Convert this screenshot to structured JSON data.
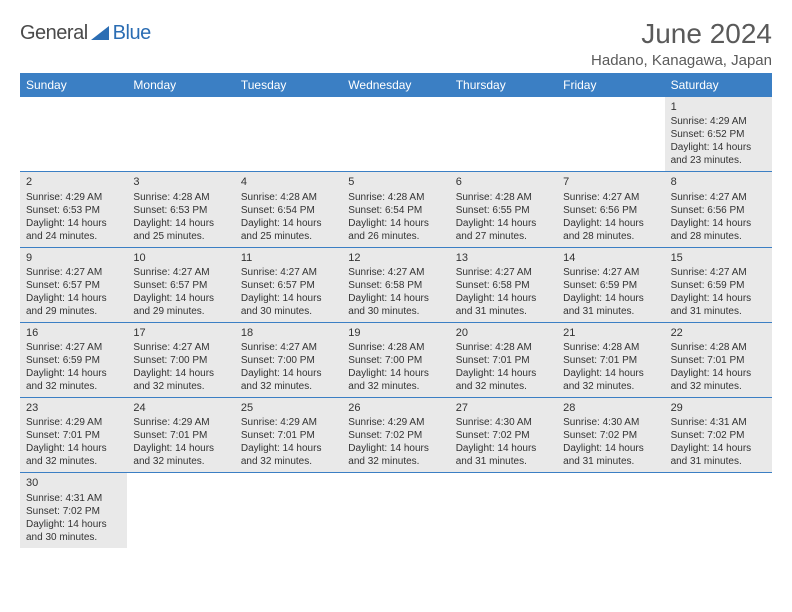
{
  "logo": {
    "part1": "General",
    "part2": "Blue"
  },
  "title": "June 2024",
  "location": "Hadano, Kanagawa, Japan",
  "colors": {
    "header_bg": "#3b7fc4",
    "header_fg": "#ffffff",
    "shaded_bg": "#e9e9e9",
    "border": "#3b7fc4",
    "text": "#333333",
    "title_text": "#5a5a5a",
    "logo_blue": "#2b6db3"
  },
  "typography": {
    "title_size_pt": 21,
    "location_size_pt": 11,
    "header_size_pt": 9,
    "cell_size_pt": 7.5
  },
  "layout": {
    "columns": 7,
    "rows": 6
  },
  "day_names": [
    "Sunday",
    "Monday",
    "Tuesday",
    "Wednesday",
    "Thursday",
    "Friday",
    "Saturday"
  ],
  "days": [
    {
      "n": 1,
      "sunrise": "4:29 AM",
      "sunset": "6:52 PM",
      "daylight": "14 hours and 23 minutes."
    },
    {
      "n": 2,
      "sunrise": "4:29 AM",
      "sunset": "6:53 PM",
      "daylight": "14 hours and 24 minutes."
    },
    {
      "n": 3,
      "sunrise": "4:28 AM",
      "sunset": "6:53 PM",
      "daylight": "14 hours and 25 minutes."
    },
    {
      "n": 4,
      "sunrise": "4:28 AM",
      "sunset": "6:54 PM",
      "daylight": "14 hours and 25 minutes."
    },
    {
      "n": 5,
      "sunrise": "4:28 AM",
      "sunset": "6:54 PM",
      "daylight": "14 hours and 26 minutes."
    },
    {
      "n": 6,
      "sunrise": "4:28 AM",
      "sunset": "6:55 PM",
      "daylight": "14 hours and 27 minutes."
    },
    {
      "n": 7,
      "sunrise": "4:27 AM",
      "sunset": "6:56 PM",
      "daylight": "14 hours and 28 minutes."
    },
    {
      "n": 8,
      "sunrise": "4:27 AM",
      "sunset": "6:56 PM",
      "daylight": "14 hours and 28 minutes."
    },
    {
      "n": 9,
      "sunrise": "4:27 AM",
      "sunset": "6:57 PM",
      "daylight": "14 hours and 29 minutes."
    },
    {
      "n": 10,
      "sunrise": "4:27 AM",
      "sunset": "6:57 PM",
      "daylight": "14 hours and 29 minutes."
    },
    {
      "n": 11,
      "sunrise": "4:27 AM",
      "sunset": "6:57 PM",
      "daylight": "14 hours and 30 minutes."
    },
    {
      "n": 12,
      "sunrise": "4:27 AM",
      "sunset": "6:58 PM",
      "daylight": "14 hours and 30 minutes."
    },
    {
      "n": 13,
      "sunrise": "4:27 AM",
      "sunset": "6:58 PM",
      "daylight": "14 hours and 31 minutes."
    },
    {
      "n": 14,
      "sunrise": "4:27 AM",
      "sunset": "6:59 PM",
      "daylight": "14 hours and 31 minutes."
    },
    {
      "n": 15,
      "sunrise": "4:27 AM",
      "sunset": "6:59 PM",
      "daylight": "14 hours and 31 minutes."
    },
    {
      "n": 16,
      "sunrise": "4:27 AM",
      "sunset": "6:59 PM",
      "daylight": "14 hours and 32 minutes."
    },
    {
      "n": 17,
      "sunrise": "4:27 AM",
      "sunset": "7:00 PM",
      "daylight": "14 hours and 32 minutes."
    },
    {
      "n": 18,
      "sunrise": "4:27 AM",
      "sunset": "7:00 PM",
      "daylight": "14 hours and 32 minutes."
    },
    {
      "n": 19,
      "sunrise": "4:28 AM",
      "sunset": "7:00 PM",
      "daylight": "14 hours and 32 minutes."
    },
    {
      "n": 20,
      "sunrise": "4:28 AM",
      "sunset": "7:01 PM",
      "daylight": "14 hours and 32 minutes."
    },
    {
      "n": 21,
      "sunrise": "4:28 AM",
      "sunset": "7:01 PM",
      "daylight": "14 hours and 32 minutes."
    },
    {
      "n": 22,
      "sunrise": "4:28 AM",
      "sunset": "7:01 PM",
      "daylight": "14 hours and 32 minutes."
    },
    {
      "n": 23,
      "sunrise": "4:29 AM",
      "sunset": "7:01 PM",
      "daylight": "14 hours and 32 minutes."
    },
    {
      "n": 24,
      "sunrise": "4:29 AM",
      "sunset": "7:01 PM",
      "daylight": "14 hours and 32 minutes."
    },
    {
      "n": 25,
      "sunrise": "4:29 AM",
      "sunset": "7:01 PM",
      "daylight": "14 hours and 32 minutes."
    },
    {
      "n": 26,
      "sunrise": "4:29 AM",
      "sunset": "7:02 PM",
      "daylight": "14 hours and 32 minutes."
    },
    {
      "n": 27,
      "sunrise": "4:30 AM",
      "sunset": "7:02 PM",
      "daylight": "14 hours and 31 minutes."
    },
    {
      "n": 28,
      "sunrise": "4:30 AM",
      "sunset": "7:02 PM",
      "daylight": "14 hours and 31 minutes."
    },
    {
      "n": 29,
      "sunrise": "4:31 AM",
      "sunset": "7:02 PM",
      "daylight": "14 hours and 31 minutes."
    },
    {
      "n": 30,
      "sunrise": "4:31 AM",
      "sunset": "7:02 PM",
      "daylight": "14 hours and 30 minutes."
    }
  ],
  "labels": {
    "sunrise": "Sunrise:",
    "sunset": "Sunset:",
    "daylight": "Daylight:"
  },
  "first_day_column_index": 6
}
